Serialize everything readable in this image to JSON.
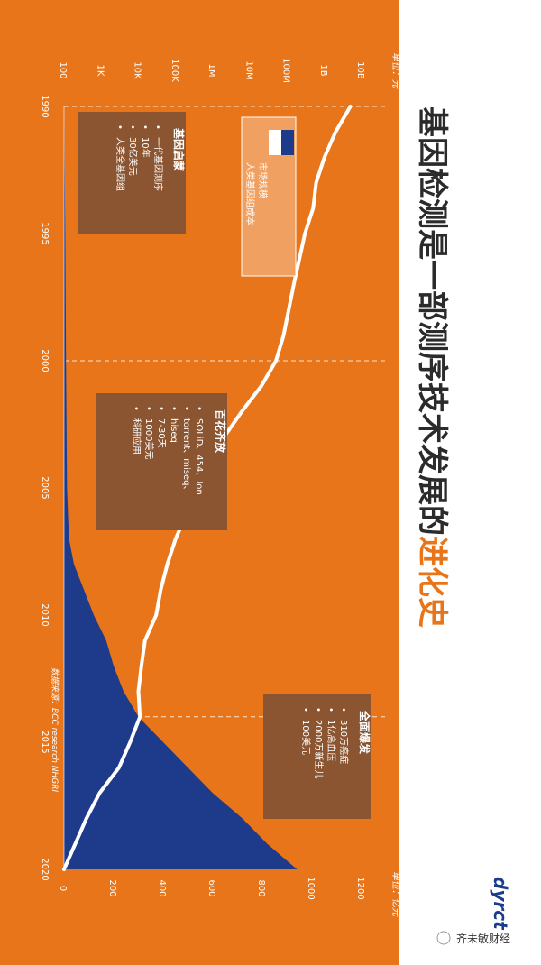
{
  "title": {
    "main": "基因检测是一部测序技术发展的",
    "highlight": "进化史",
    "main_color": "#2b2b2b",
    "highlight_color": "#e8751a"
  },
  "colors": {
    "background": "#e8751a",
    "area": "#1e3a8a",
    "line": "#ffffff",
    "note_box": "#8a5530",
    "legend_box": "#f0a060"
  },
  "left_axis_unit": "单位：元",
  "right_axis_unit": "单位：亿元",
  "source": "数据来源：BCC research NHGRI",
  "watermark": "齐未敏财经",
  "logo_text": "dyrct",
  "legend": {
    "items": [
      {
        "label": "市场规模",
        "color": "#1e3a8a"
      },
      {
        "label": "人类基因组成本",
        "color": "#ffffff"
      }
    ]
  },
  "notes": [
    {
      "title": "基因启蒙",
      "lines": [
        "一代基因测序",
        "10年",
        "30亿美元",
        "人类全基因组"
      ]
    },
    {
      "title": "百花齐放",
      "lines": [
        "SOLiD、454、Ion",
        "torrent、miseq、",
        "hiseq",
        "7-30天",
        "1000美元",
        "科研应用"
      ]
    },
    {
      "title": "全面爆发",
      "lines": [
        "310万癌症",
        "1亿高血压",
        "2000万新生儿",
        "100美元"
      ]
    }
  ],
  "chart_data": {
    "type": "area",
    "x_label_ticks": [
      "1990",
      "1995",
      "2000",
      "2005",
      "2010",
      "2015",
      "2020"
    ],
    "xlim": [
      1990,
      2020
    ],
    "dividers": [
      1990,
      2000,
      2014
    ],
    "left_axis": {
      "unit": "单位：元",
      "scale": "log",
      "ticks": [
        "100",
        "1K",
        "10K",
        "100K",
        "1M",
        "10M",
        "100M",
        "1B",
        "10B"
      ],
      "tick_values": [
        100,
        1000,
        10000,
        100000,
        1000000,
        10000000,
        100000000,
        1000000000,
        10000000000
      ]
    },
    "right_axis": {
      "unit": "单位：亿元",
      "ticks": [
        "0",
        "200",
        "400",
        "600",
        "800",
        "1000",
        "1200"
      ],
      "ylim": [
        0,
        1200
      ]
    },
    "series": [
      {
        "name": "市场规模",
        "type": "area",
        "axis": "right",
        "x": [
          1990,
          1995,
          2000,
          2005,
          2007,
          2008,
          2009,
          2010,
          2011,
          2012,
          2013,
          2014,
          2015,
          2016,
          2017,
          2018,
          2019,
          2020
        ],
        "y": [
          0,
          5,
          8,
          12,
          20,
          40,
          80,
          120,
          170,
          200,
          240,
          300,
          400,
          500,
          600,
          720,
          820,
          940
        ]
      },
      {
        "name": "人类基因组成本",
        "type": "line",
        "axis": "left",
        "x": [
          1990,
          1991,
          1992,
          1993,
          1994,
          1995,
          1997,
          1999,
          2000,
          2001,
          2002,
          2003,
          2004,
          2005,
          2006,
          2007,
          2008,
          2009,
          2010,
          2011,
          2012,
          2013,
          2014,
          2015,
          2016,
          2017,
          2018,
          2019,
          2020
        ],
        "y": [
          5000000000,
          2000000000,
          1000000000,
          600000000,
          500000000,
          300000000,
          150000000,
          80000000,
          50000000,
          20000000,
          6000000,
          2000000,
          900000,
          500000,
          200000,
          100000,
          60000,
          40000,
          30000,
          15000,
          12000,
          10000,
          11000,
          6000,
          3000,
          900,
          400,
          200,
          100
        ]
      }
    ]
  }
}
